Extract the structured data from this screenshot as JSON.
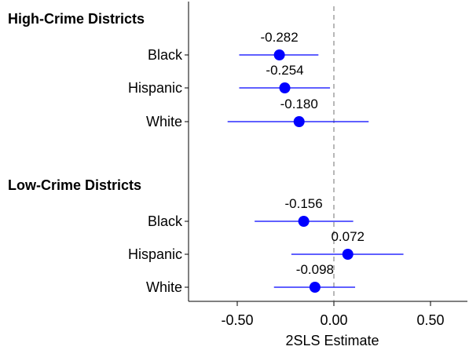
{
  "chart_data": {
    "type": "scatter",
    "subtype": "coefficient-plot",
    "title": "",
    "xlabel": "2SLS Estimate",
    "ylabel": "",
    "xlim": [
      -0.75,
      0.72
    ],
    "xticks": [
      -0.5,
      0.0,
      0.5
    ],
    "xtick_labels": [
      "-0.50",
      "0.00",
      "0.50"
    ],
    "reference_line_x": 0,
    "reference_line_style": "dashed",
    "grid": false,
    "colors": {
      "marker": "#0000ff",
      "ci": "#0000ff",
      "reference": "#888888"
    },
    "groups": [
      {
        "label": "High-Crime Districts",
        "rows": [
          {
            "category": "Black",
            "estimate": -0.282,
            "label": "-0.282",
            "ci": [
              -0.49,
              -0.08
            ]
          },
          {
            "category": "Hispanic",
            "estimate": -0.254,
            "label": "-0.254",
            "ci": [
              -0.49,
              -0.02
            ]
          },
          {
            "category": "White",
            "estimate": -0.18,
            "label": "-0.180",
            "ci": [
              -0.55,
              0.18
            ]
          }
        ]
      },
      {
        "label": "Low-Crime Districts",
        "rows": [
          {
            "category": "Black",
            "estimate": -0.156,
            "label": "-0.156",
            "ci": [
              -0.41,
              0.1
            ]
          },
          {
            "category": "Hispanic",
            "estimate": 0.072,
            "label": "0.072",
            "ci": [
              -0.22,
              0.36
            ]
          },
          {
            "category": "White",
            "estimate": -0.098,
            "label": "-0.098",
            "ci": [
              -0.31,
              0.11
            ]
          }
        ]
      }
    ]
  }
}
